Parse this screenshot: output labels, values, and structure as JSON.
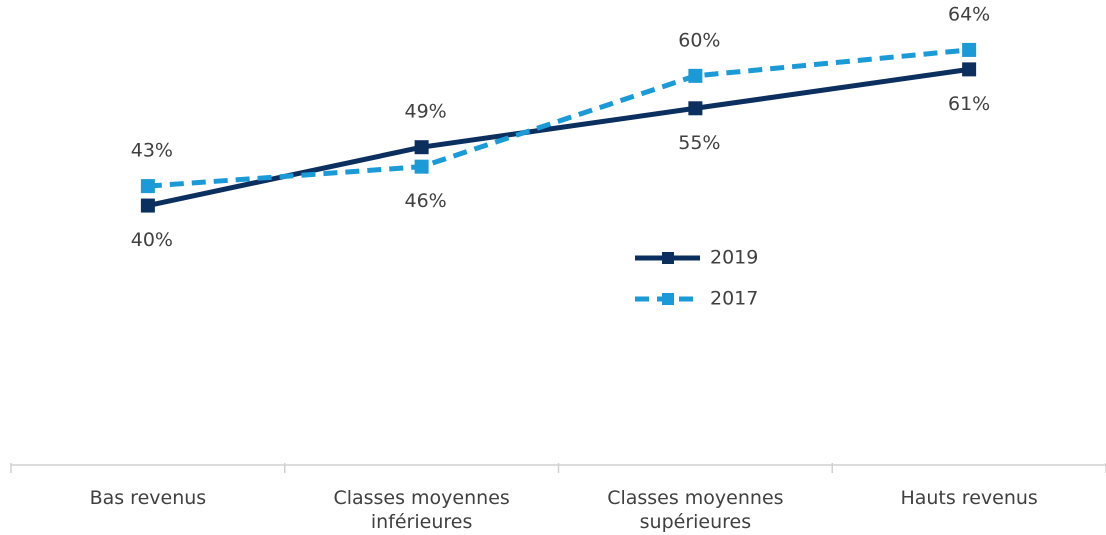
{
  "chart_data": {
    "type": "line",
    "categories": [
      "Bas revenus",
      "Classes moyennes inférieures",
      "Classes moyennes supérieures",
      "Hauts revenus"
    ],
    "series": [
      {
        "name": "2019",
        "color": "#0b2f5f",
        "dash": false,
        "values": [
          40,
          49,
          55,
          61
        ],
        "value_labels": [
          "40%",
          "49%",
          "55%",
          "61%"
        ]
      },
      {
        "name": "2017",
        "color": "#1a9ad6",
        "dash": true,
        "values": [
          43,
          46,
          60,
          64
        ],
        "value_labels": [
          "43%",
          "46%",
          "60%",
          "64%"
        ]
      }
    ],
    "ylim": [
      0,
      70
    ],
    "grid": false
  }
}
